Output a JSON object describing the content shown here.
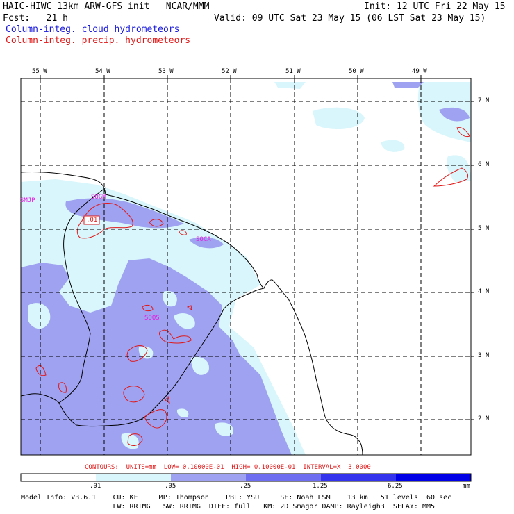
{
  "header": {
    "title": "HAIC-HIWC 13km ARW-GFS init   NCAR/MMM",
    "init": "Init: 12 UTC Fri 22 May 15",
    "fcst": "Fcst:   21 h",
    "valid": "Valid: 09 UTC Sat 23 May 15 (06 LST Sat 23 May 15)",
    "field_cloud": "Column-integ. cloud hydrometeors",
    "field_precip": "Column-integ. precip. hydrometeors"
  },
  "colors": {
    "cloud_text": "#1a1adc",
    "precip_text": "#e01818",
    "level1": "#d8f6fb",
    "level2": "#9fa2f0",
    "level3": "#6d6ff0",
    "level4": "#3333ee",
    "level5": "#0000e6"
  },
  "map": {
    "lon_labels": [
      "55 W",
      "54 W",
      "53 W",
      "52 W",
      "51 W",
      "50 W",
      "49 W"
    ],
    "lat_labels": [
      "7 N",
      "6 N",
      "5 N",
      "4 N",
      "3 N",
      "2 N"
    ],
    "stations": [
      "SMJP",
      "SOGM",
      "SOCA",
      "SOOS"
    ],
    "contour_label": ".01"
  },
  "contours_line": "CONTOURS:  UNITS=mm  LOW= 0.10000E-01  HIGH= 0.10000E-01  INTERVAL=X  3.0000",
  "colorbar": {
    "ticks": [
      ".01",
      ".05",
      ".25",
      "1.25",
      "6.25"
    ],
    "units": "mm"
  },
  "model_info": {
    "line1": "Model Info: V3.6.1    CU: KF     MP: Thompson    PBL: YSU     SF: Noah LSM    13 km   51 levels  60 sec",
    "line2": "                      LW: RRTMG   SW: RRTMG  DIFF: full   KM: 2D Smagor DAMP: Rayleigh3  SFLAY: MM5"
  }
}
